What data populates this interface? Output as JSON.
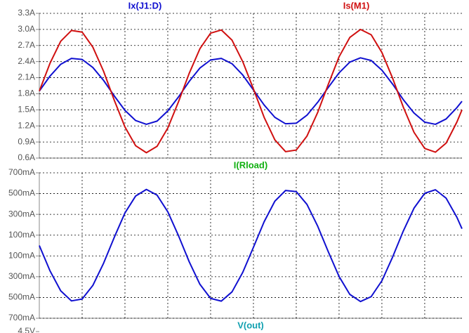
{
  "chart_data": [
    {
      "type": "line",
      "x": [
        0,
        0.25,
        0.5,
        0.75,
        1,
        1.25,
        1.5,
        1.75,
        2,
        2.25,
        2.5,
        2.75,
        3,
        3.25,
        3.5,
        3.75,
        4,
        4.25,
        4.5,
        4.75,
        5,
        5.25,
        5.5,
        5.75,
        6,
        6.25,
        6.5,
        6.75,
        7,
        7.25,
        7.5,
        7.75,
        8,
        8.25,
        8.5,
        8.75,
        9,
        9.25,
        9.5,
        9.75,
        9.87
      ],
      "xlim": [
        0,
        9.87
      ],
      "xticks": [
        1,
        2,
        3,
        4,
        5,
        6,
        7,
        8,
        9
      ],
      "ylim": [
        0.6,
        3.3
      ],
      "yticks": [
        {
          "value": 0.6,
          "label": "0.6A"
        },
        {
          "value": 0.9,
          "label": "0.9A"
        },
        {
          "value": 1.2,
          "label": "1.2A"
        },
        {
          "value": 1.5,
          "label": "1.5A"
        },
        {
          "value": 1.8,
          "label": "1.8A"
        },
        {
          "value": 2.1,
          "label": "2.1A"
        },
        {
          "value": 2.4,
          "label": "2.4A"
        },
        {
          "value": 2.7,
          "label": "2.7A"
        },
        {
          "value": 3.0,
          "label": "3.0A"
        },
        {
          "value": 3.3,
          "label": "3.3A"
        }
      ],
      "grid": true,
      "series": [
        {
          "name": "Ix(J1:D)",
          "color": "#1010d0",
          "name_color": "#1010d0",
          "values": [
            1.85,
            2.13,
            2.35,
            2.46,
            2.44,
            2.29,
            2.05,
            1.76,
            1.49,
            1.3,
            1.23,
            1.29,
            1.48,
            1.74,
            2.03,
            2.28,
            2.43,
            2.46,
            2.36,
            2.15,
            1.87,
            1.59,
            1.36,
            1.24,
            1.25,
            1.4,
            1.64,
            1.92,
            2.19,
            2.39,
            2.47,
            2.42,
            2.24,
            1.98,
            1.69,
            1.44,
            1.27,
            1.23,
            1.33,
            1.54,
            1.66
          ]
        },
        {
          "name": "Is(M1)",
          "color": "#d01010",
          "name_color": "#d01010",
          "values": [
            1.85,
            2.37,
            2.78,
            2.98,
            2.95,
            2.67,
            2.22,
            1.68,
            1.18,
            0.83,
            0.7,
            0.82,
            1.16,
            1.65,
            2.18,
            2.64,
            2.93,
            2.99,
            2.8,
            2.4,
            1.89,
            1.36,
            0.94,
            0.72,
            0.75,
            1.01,
            1.45,
            1.98,
            2.49,
            2.85,
            3.0,
            2.9,
            2.57,
            2.09,
            1.55,
            1.08,
            0.78,
            0.71,
            0.88,
            1.27,
            1.5
          ]
        }
      ]
    },
    {
      "type": "line",
      "x": [
        0,
        0.25,
        0.5,
        0.75,
        1,
        1.25,
        1.5,
        1.75,
        2,
        2.25,
        2.5,
        2.75,
        3,
        3.25,
        3.5,
        3.75,
        4,
        4.25,
        4.5,
        4.75,
        5,
        5.25,
        5.5,
        5.75,
        6,
        6.25,
        6.5,
        6.75,
        7,
        7.25,
        7.5,
        7.75,
        8,
        8.25,
        8.5,
        8.75,
        9,
        9.25,
        9.5,
        9.75,
        9.87
      ],
      "xlim": [
        0,
        9.87
      ],
      "xticks": [
        1,
        2,
        3,
        4,
        5,
        6,
        7,
        8,
        9
      ],
      "ylim": [
        -700,
        700
      ],
      "yticks": [
        {
          "value": -700,
          "label": "700mA"
        },
        {
          "value": -500,
          "label": "500mA"
        },
        {
          "value": -300,
          "label": "300mA"
        },
        {
          "value": -100,
          "label": "100mA"
        },
        {
          "value": 100,
          "label": "100mA"
        },
        {
          "value": 300,
          "label": "300mA"
        },
        {
          "value": 500,
          "label": "500mA"
        },
        {
          "value": 700,
          "label": "700mA"
        }
      ],
      "grid": true,
      "series": [
        {
          "name": "I(Rload)",
          "color": "#1010d0",
          "name_color": "#10b010",
          "values": [
            0,
            -244,
            -436,
            -533,
            -515,
            -384,
            -171,
            79,
            314,
            477,
            540,
            485,
            325,
            95,
            -156,
            -373,
            -509,
            -535,
            -446,
            -259,
            -17,
            229,
            427,
            530,
            519,
            396,
            187,
            -62,
            -298,
            -470,
            -539,
            -492,
            -339,
            -111,
            140,
            360,
            503,
            537,
            456,
            273,
            162
          ]
        }
      ]
    },
    {
      "type": "line",
      "title": "V(out)",
      "title_color": "#10a0b0",
      "ylim": [
        -4.5,
        4.5
      ],
      "yticks": [
        {
          "value": 4.5,
          "label": "4.5V"
        }
      ]
    }
  ]
}
